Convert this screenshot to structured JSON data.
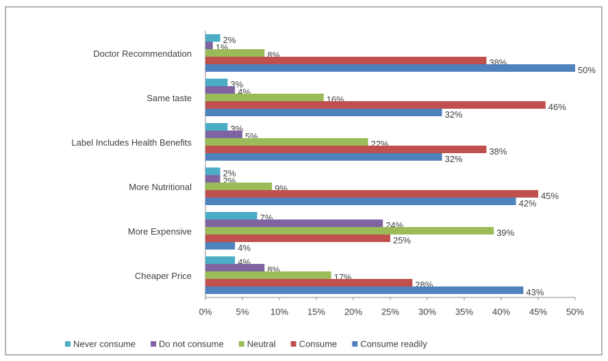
{
  "chart_data": {
    "type": "hbar",
    "categories": [
      "Doctor Recommendation",
      "Same taste",
      "Label Includes Health Benefits",
      "More Nutritional",
      "More Expensive",
      "Cheaper Price"
    ],
    "series": [
      {
        "name": "Never consume",
        "color": "#4bacc6",
        "values": [
          2,
          3,
          3,
          2,
          7,
          4
        ],
        "value_labels": [
          "2%",
          "3%",
          "3%",
          "2%",
          "7%",
          "4%"
        ]
      },
      {
        "name": "Do not consume",
        "color": "#8064a2",
        "values": [
          1,
          4,
          5,
          2,
          24,
          8
        ],
        "value_labels": [
          "1%",
          "4%",
          "5%",
          "2%",
          "24%",
          "8%"
        ]
      },
      {
        "name": "Neutral",
        "color": "#9bbb59",
        "values": [
          8,
          16,
          22,
          9,
          39,
          17
        ],
        "value_labels": [
          "8%",
          "16%",
          "22%",
          "9%",
          "39%",
          "17%"
        ]
      },
      {
        "name": "Consume",
        "color": "#c0504d",
        "values": [
          38,
          46,
          38,
          45,
          25,
          28
        ],
        "value_labels": [
          "38%",
          "46%",
          "38%",
          "45%",
          "25%",
          "28%"
        ]
      },
      {
        "name": "Consume readily",
        "color": "#4f81bd",
        "values": [
          50,
          32,
          32,
          42,
          4,
          43
        ],
        "value_labels": [
          "50%",
          "32%",
          "32%",
          "42%",
          "4%",
          "43%"
        ]
      }
    ],
    "xlim": [
      0,
      50
    ],
    "xticks": [
      {
        "value": 0,
        "label": "0%"
      },
      {
        "value": 5,
        "label": "5%"
      },
      {
        "value": 10,
        "label": "10%"
      },
      {
        "value": 15,
        "label": "15%"
      },
      {
        "value": 20,
        "label": "20%"
      },
      {
        "value": 25,
        "label": "25%"
      },
      {
        "value": 30,
        "label": "30%"
      },
      {
        "value": 35,
        "label": "35%"
      },
      {
        "value": 40,
        "label": "40%"
      },
      {
        "value": 45,
        "label": "45%"
      },
      {
        "value": 50,
        "label": "50%"
      }
    ],
    "legend": "bottom"
  }
}
